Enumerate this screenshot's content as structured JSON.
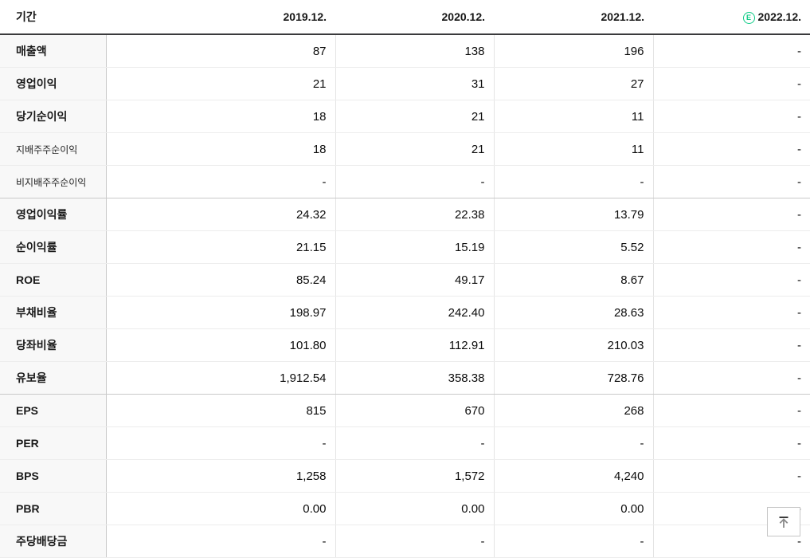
{
  "page": {
    "background": "#ffffff"
  },
  "colors": {
    "estimate_green": "#0ecb86",
    "header_border": "#3a3a3c",
    "row_border": "#ededed",
    "group_border": "#c9c9c9",
    "label_column_background": "#f8f8f8"
  },
  "table": {
    "period_column_header": "기간",
    "estimate_badge_text": "E",
    "columns": [
      {
        "label": "2019.12.",
        "estimate": false
      },
      {
        "label": "2020.12.",
        "estimate": false
      },
      {
        "label": "2021.12.",
        "estimate": false
      },
      {
        "label": "2022.12.",
        "estimate": true
      }
    ],
    "rows": [
      {
        "label": "매출액",
        "values": [
          "87",
          "138",
          "196",
          "-"
        ]
      },
      {
        "label": "영업이익",
        "values": [
          "21",
          "31",
          "27",
          "-"
        ]
      },
      {
        "label": "당기순이익",
        "values": [
          "18",
          "21",
          "11",
          "-"
        ]
      },
      {
        "label": "지배주주순이익",
        "values": [
          "18",
          "21",
          "11",
          "-"
        ],
        "sub": true
      },
      {
        "label": "비지배주주순이익",
        "values": [
          "-",
          "-",
          "-",
          "-"
        ],
        "sub": true
      },
      {
        "label": "영업이익률",
        "values": [
          "24.32",
          "22.38",
          "13.79",
          "-"
        ],
        "group_start": true
      },
      {
        "label": "순이익률",
        "values": [
          "21.15",
          "15.19",
          "5.52",
          "-"
        ]
      },
      {
        "label": "ROE",
        "values": [
          "85.24",
          "49.17",
          "8.67",
          "-"
        ]
      },
      {
        "label": "부채비율",
        "values": [
          "198.97",
          "242.40",
          "28.63",
          "-"
        ]
      },
      {
        "label": "당좌비율",
        "values": [
          "101.80",
          "112.91",
          "210.03",
          "-"
        ]
      },
      {
        "label": "유보율",
        "values": [
          "1,912.54",
          "358.38",
          "728.76",
          "-"
        ]
      },
      {
        "label": "EPS",
        "values": [
          "815",
          "670",
          "268",
          "-"
        ],
        "group_start": true
      },
      {
        "label": "PER",
        "values": [
          "-",
          "-",
          "-",
          "-"
        ]
      },
      {
        "label": "BPS",
        "values": [
          "1,258",
          "1,572",
          "4,240",
          "-"
        ]
      },
      {
        "label": "PBR",
        "values": [
          "0.00",
          "0.00",
          "0.00",
          "-"
        ]
      },
      {
        "label": "주당배당금",
        "values": [
          "-",
          "-",
          "-",
          "-"
        ]
      }
    ]
  }
}
